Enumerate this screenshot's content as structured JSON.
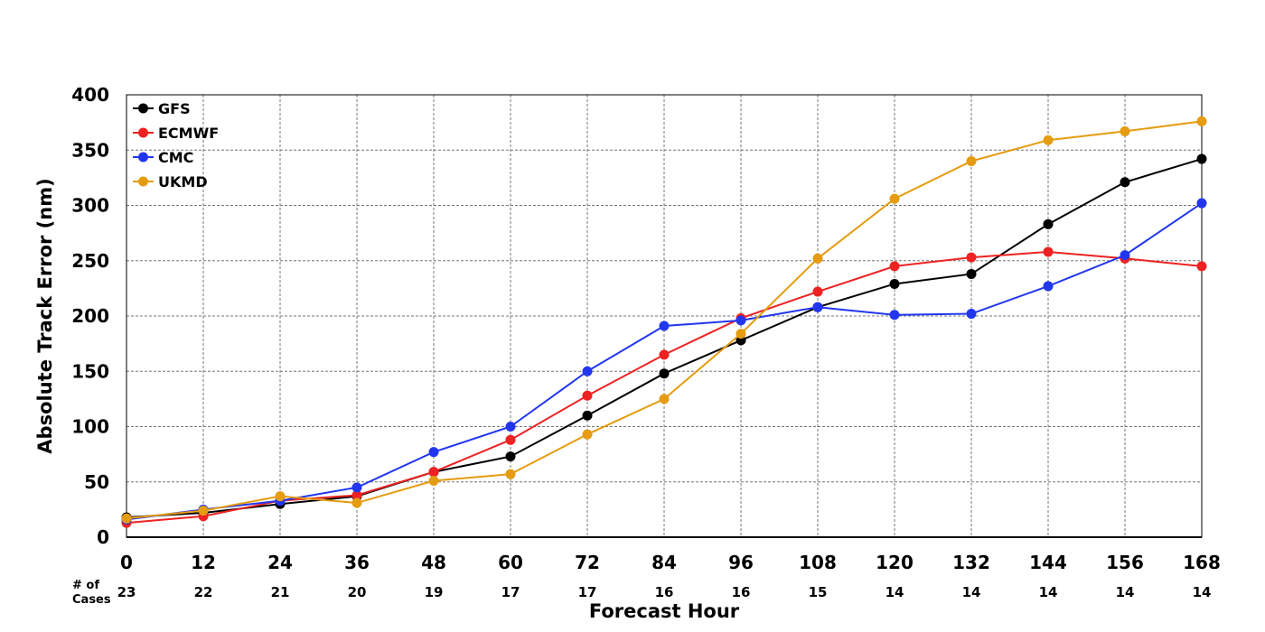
{
  "chart_data": {
    "type": "line",
    "title": "",
    "xlabel": "Forecast Hour",
    "ylabel": "Absolute Track Error (nm)",
    "x": [
      0,
      12,
      24,
      36,
      48,
      60,
      72,
      84,
      96,
      108,
      120,
      132,
      144,
      156,
      168
    ],
    "xlim": [
      0,
      168
    ],
    "ylim": [
      0,
      400
    ],
    "yticks": [
      0,
      50,
      100,
      150,
      200,
      250,
      300,
      350,
      400
    ],
    "grid": true,
    "legend_position": "top-left",
    "cases_label": "# of\nCases",
    "cases": [
      23,
      22,
      21,
      20,
      19,
      17,
      17,
      16,
      16,
      15,
      14,
      14,
      14,
      14,
      14
    ],
    "series": [
      {
        "name": "GFS",
        "color": "#000000",
        "values": [
          18,
          22,
          30,
          37,
          59,
          73,
          110,
          148,
          178,
          208,
          229,
          238,
          283,
          321,
          342
        ]
      },
      {
        "name": "ECMWF",
        "color": "#ee2222",
        "values": [
          13,
          19,
          33,
          38,
          59,
          88,
          128,
          165,
          198,
          222,
          245,
          253,
          258,
          252,
          245
        ]
      },
      {
        "name": "CMC",
        "color": "#2236f0",
        "values": [
          16,
          25,
          33,
          45,
          77,
          100,
          150,
          191,
          196,
          208,
          201,
          202,
          227,
          255,
          302
        ]
      },
      {
        "name": "UKMD",
        "color": "#e59c10",
        "values": [
          17,
          24,
          37,
          31,
          51,
          57,
          93,
          125,
          184,
          252,
          306,
          340,
          359,
          367,
          376
        ]
      }
    ]
  }
}
